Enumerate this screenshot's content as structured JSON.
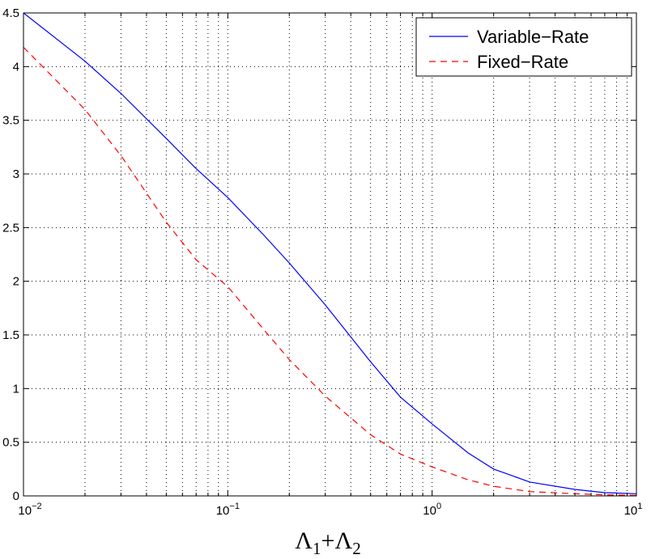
{
  "chart_data": {
    "type": "line",
    "xscale": "log",
    "xlim": [
      0.01,
      10
    ],
    "ylim": [
      0,
      4.5
    ],
    "grid": true,
    "legend_position": "top-right",
    "xlabel": {
      "base": "Λ",
      "sub1": "1",
      "plus": "+",
      "sub2": "2"
    },
    "xticks": [
      {
        "value": 0.01,
        "base": "10",
        "exp": "−2"
      },
      {
        "value": 0.1,
        "base": "10",
        "exp": "−1"
      },
      {
        "value": 1,
        "base": "10",
        "exp": "0"
      },
      {
        "value": 10,
        "base": "10",
        "exp": "1"
      }
    ],
    "yticks": [
      "0",
      "0.5",
      "1",
      "1.5",
      "2",
      "2.5",
      "3",
      "3.5",
      "4",
      "4.5"
    ],
    "series": [
      {
        "name": "Variable−Rate",
        "color": "#0000ff",
        "dash": "solid",
        "x": [
          0.01,
          0.02,
          0.03,
          0.05,
          0.07,
          0.1,
          0.15,
          0.2,
          0.3,
          0.5,
          0.7,
          1,
          1.5,
          2,
          3,
          5,
          7,
          10
        ],
        "y": [
          4.5,
          4.05,
          3.75,
          3.33,
          3.05,
          2.78,
          2.43,
          2.17,
          1.78,
          1.25,
          0.92,
          0.67,
          0.4,
          0.25,
          0.13,
          0.06,
          0.03,
          0.02
        ]
      },
      {
        "name": "Fixed−Rate",
        "color": "#ff0000",
        "dash": "dashed",
        "x": [
          0.01,
          0.02,
          0.03,
          0.05,
          0.07,
          0.1,
          0.15,
          0.2,
          0.3,
          0.5,
          0.7,
          1,
          1.5,
          2,
          3,
          5,
          7,
          10
        ],
        "y": [
          4.18,
          3.6,
          3.17,
          2.55,
          2.2,
          1.95,
          1.55,
          1.27,
          0.93,
          0.57,
          0.39,
          0.27,
          0.15,
          0.09,
          0.04,
          0.02,
          0.01,
          0.005
        ]
      }
    ]
  }
}
